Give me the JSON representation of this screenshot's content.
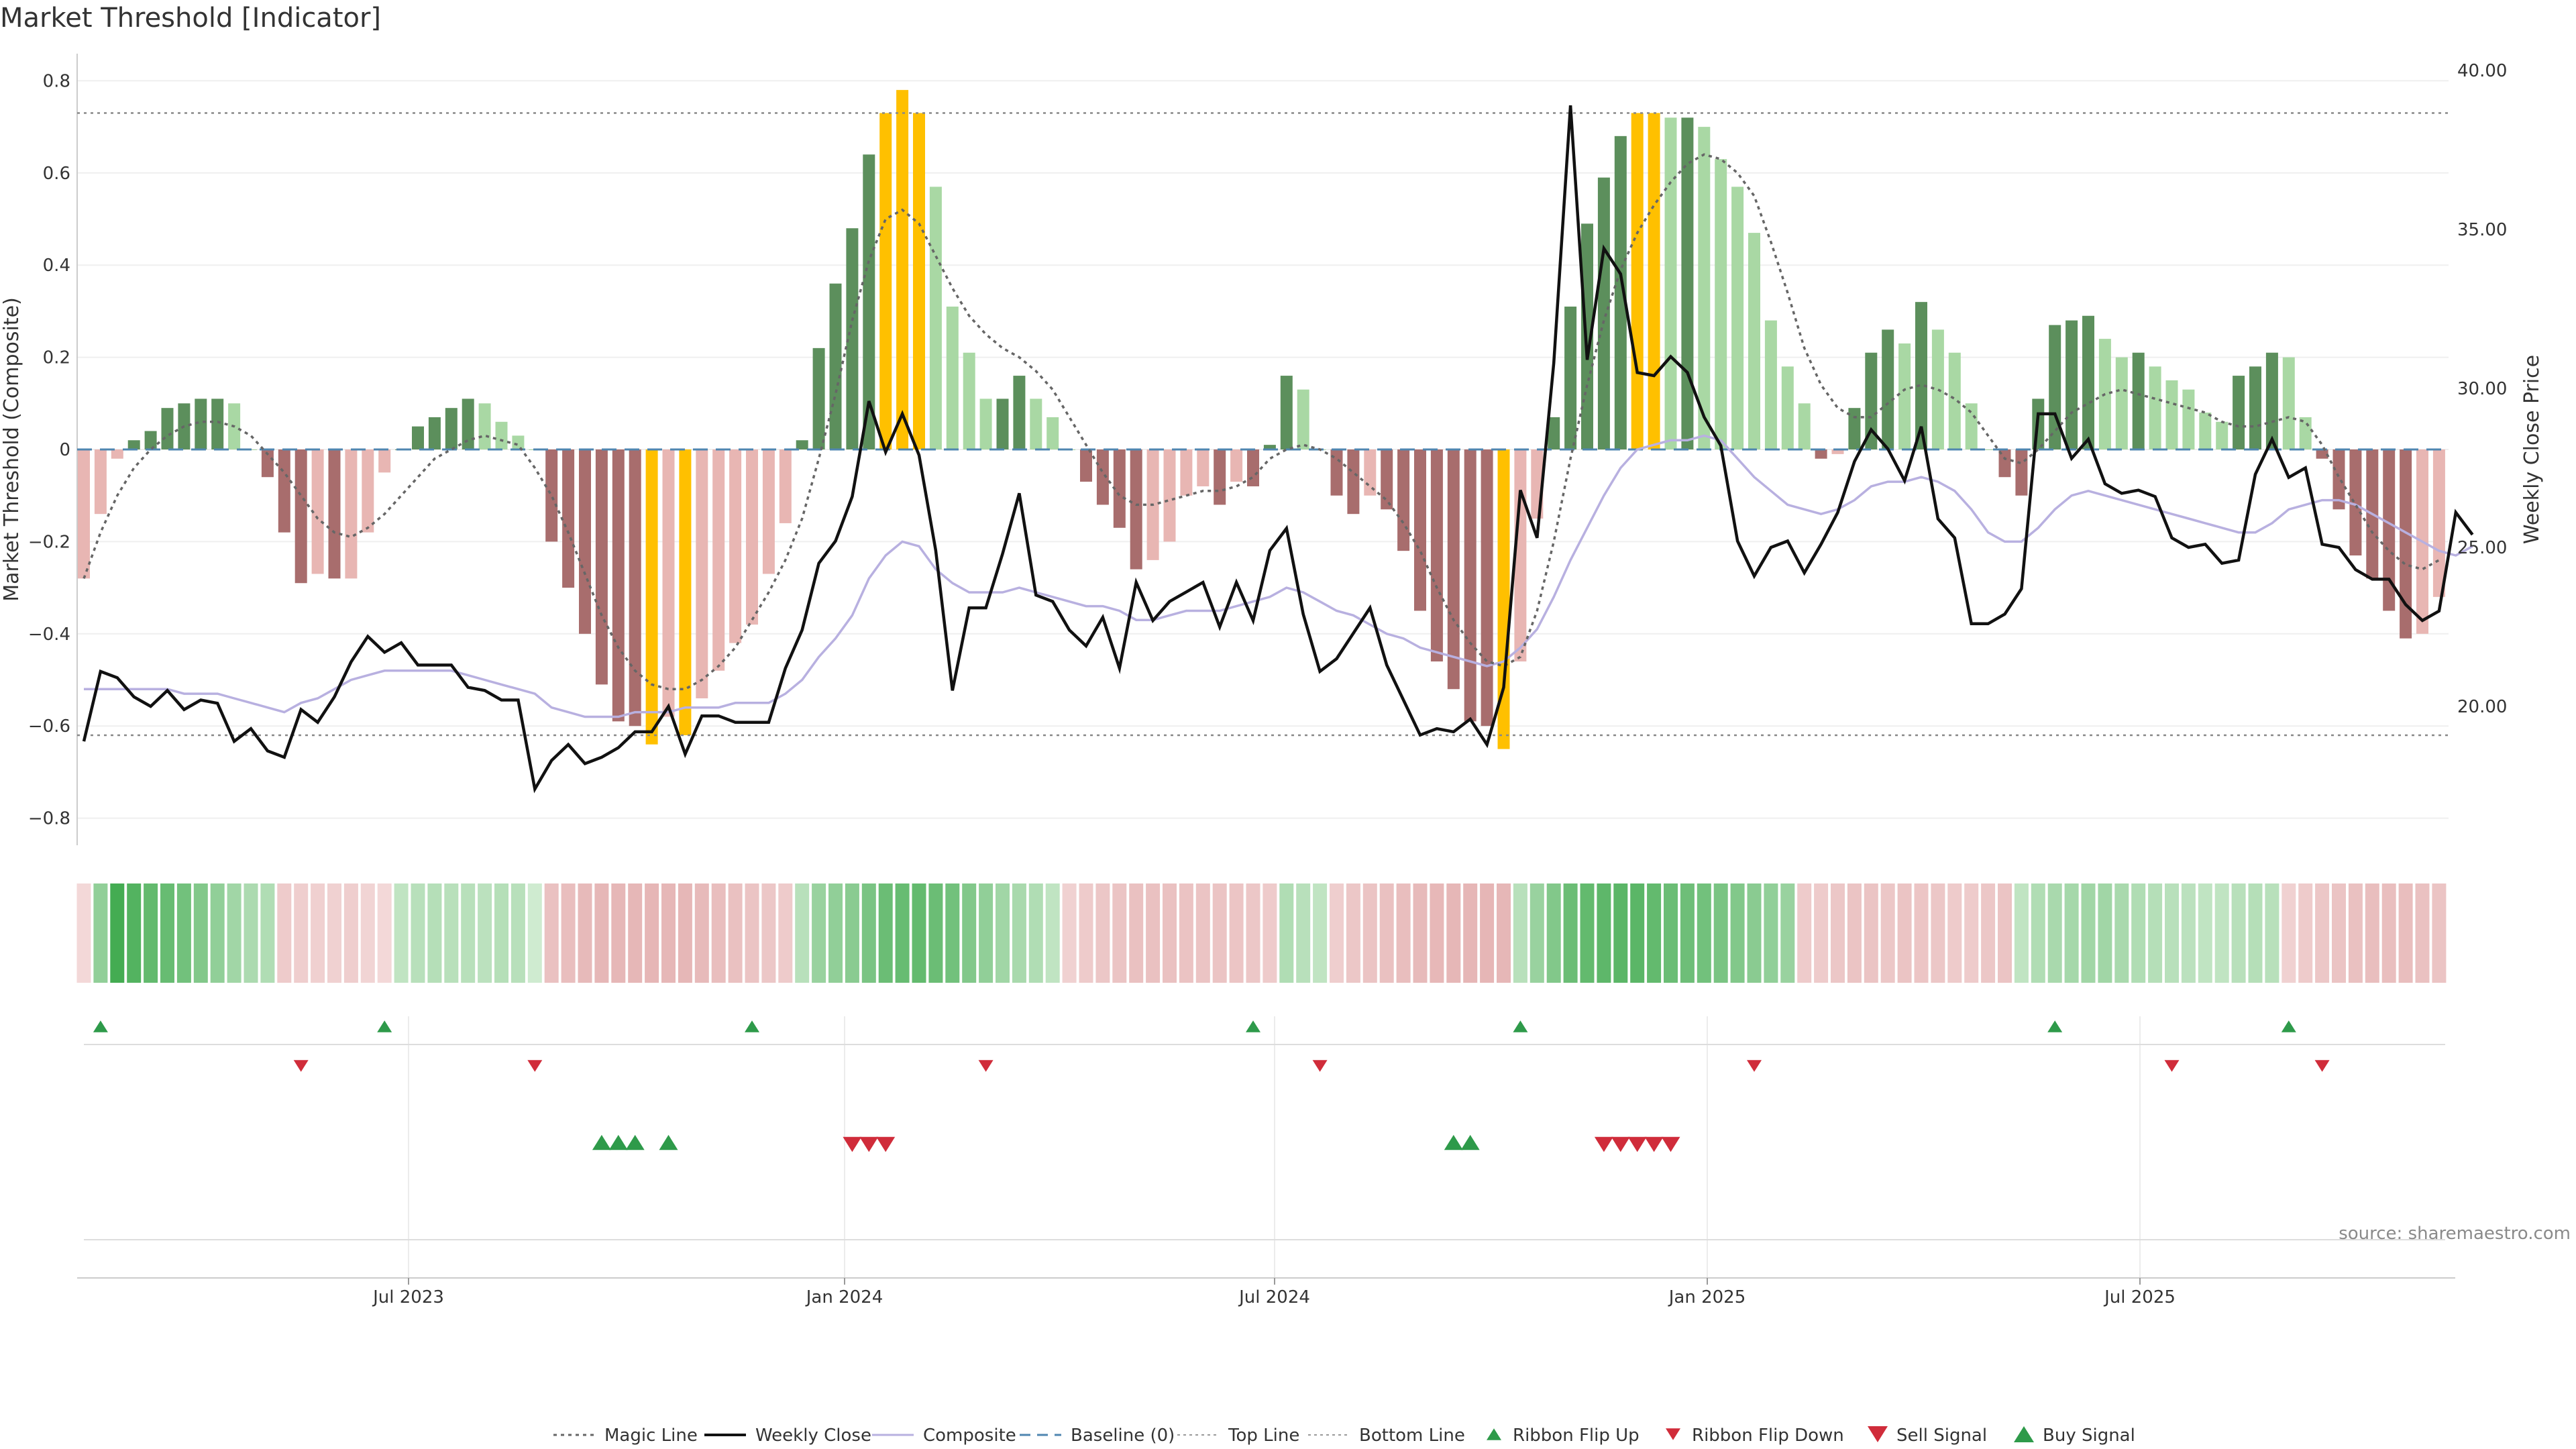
{
  "title": "Market Threshold [Indicator]",
  "source": "source: sharemaestro.com",
  "chart_data": {
    "type": "bar",
    "title": "Market Threshold [Indicator]",
    "ylabel": "Market Threshold (Composite)",
    "y2label": "Weekly Close Price",
    "ylim": [
      -0.85,
      0.82
    ],
    "y2lim": [
      16.5,
      40.5
    ],
    "yticks": [
      "0.8",
      "0.6",
      "0.4",
      "0.2",
      "0",
      "−0.2",
      "−0.4",
      "−0.6",
      "−0.8"
    ],
    "y2ticks": [
      "40.00",
      "35.00",
      "30.00",
      "25.00",
      "20.00"
    ],
    "xticks": [
      "Jul 2023",
      "Jan 2024",
      "Jul 2024",
      "Jan 2025",
      "Jul 2025"
    ],
    "top_line": 0.73,
    "bottom_line": -0.62,
    "baseline": 0,
    "grid": true,
    "legend_position": "bottom-center",
    "colors": {
      "dark_green": "#5c8f5c",
      "light_green": "#a9d8a4",
      "dark_red": "#a86d6d",
      "light_red": "#e8b6b3",
      "extreme": "#ffc000",
      "close": "#111111",
      "composite": "#b8b0e0",
      "magic": "#666666",
      "baseline": "#4f86b0",
      "up": "#2e9a4a",
      "down": "#d02c3a"
    },
    "series": [
      {
        "name": "Market Threshold (Composite)",
        "values": [
          -0.28,
          -0.14,
          -0.02,
          0.02,
          0.04,
          0.09,
          0.1,
          0.11,
          0.11,
          0.1,
          0,
          -0.06,
          -0.18,
          -0.29,
          -0.27,
          -0.28,
          -0.28,
          -0.18,
          -0.05,
          0,
          0.05,
          0.07,
          0.09,
          0.11,
          0.1,
          0.06,
          0.03,
          0,
          -0.2,
          -0.3,
          -0.4,
          -0.51,
          -0.59,
          -0.6,
          -0.64,
          -0.58,
          -0.62,
          -0.54,
          -0.48,
          -0.42,
          -0.38,
          -0.27,
          -0.16,
          0.02,
          0.22,
          0.36,
          0.48,
          0.64,
          0.73,
          0.78,
          0.73,
          0.57,
          0.31,
          0.21,
          0.11,
          0.11,
          0.16,
          0.11,
          0.07,
          0,
          -0.07,
          -0.12,
          -0.17,
          -0.26,
          -0.24,
          -0.2,
          -0.1,
          -0.08,
          -0.12,
          -0.07,
          -0.08,
          0.01,
          0.16,
          0.13,
          0,
          -0.1,
          -0.14,
          -0.1,
          -0.13,
          -0.22,
          -0.35,
          -0.46,
          -0.52,
          -0.59,
          -0.6,
          -0.65,
          -0.46,
          -0.15,
          0.07,
          0.31,
          0.49,
          0.59,
          0.68,
          0.73,
          0.73,
          0.72,
          0.72,
          0.7,
          0.63,
          0.57,
          0.47,
          0.28,
          0.18,
          0.1,
          -0.02,
          -0.01,
          0.09,
          0.21,
          0.26,
          0.23,
          0.32,
          0.26,
          0.21,
          0.1,
          0,
          -0.06,
          -0.1,
          0.11,
          0.27,
          0.28,
          0.29,
          0.24,
          0.2,
          0.21,
          0.18,
          0.15,
          0.13,
          0.08,
          0.06,
          0.16,
          0.18,
          0.21,
          0.2,
          0.07,
          -0.02,
          -0.13,
          -0.23,
          -0.28,
          -0.35,
          -0.41,
          -0.4,
          -0.32
        ]
      },
      {
        "name": "Weekly Close",
        "values": [
          18.9,
          21.1,
          20.9,
          20.3,
          20,
          20.5,
          19.9,
          20.2,
          20.1,
          18.9,
          19.3,
          18.6,
          18.4,
          19.9,
          19.5,
          20.3,
          21.4,
          22.2,
          21.7,
          22,
          21.3,
          21.3,
          21.3,
          20.6,
          20.5,
          20.2,
          20.2,
          17.4,
          18.3,
          18.8,
          18.2,
          18.4,
          18.7,
          19.2,
          19.2,
          20,
          18.5,
          19.7,
          19.7,
          19.5,
          19.5,
          19.5,
          21.2,
          22.4,
          24.5,
          25.2,
          26.6,
          29.6,
          28,
          29.2,
          27.9,
          24.9,
          20.5,
          23.1,
          23.1,
          24.8,
          26.7,
          23.5,
          23.3,
          22.4,
          21.9,
          22.8,
          21.2,
          23.9,
          22.7,
          23.3,
          23.6,
          23.9,
          22.5,
          23.9,
          22.7,
          24.9,
          25.6,
          22.9,
          21.1,
          21.5,
          22.3,
          23.1,
          21.3,
          20.2,
          19.1,
          19.3,
          19.2,
          19.6,
          18.8,
          20.6,
          26.8,
          25.3,
          30.8,
          38.9,
          30.9,
          34.4,
          33.6,
          30.5,
          30.4,
          31,
          30.5,
          29.1,
          28.2,
          25.2,
          24.1,
          25,
          25.2,
          24.2,
          25.1,
          26.1,
          27.7,
          28.7,
          28.1,
          27.1,
          28.8,
          25.9,
          25.3,
          22.6,
          22.6,
          22.9,
          23.7,
          29.2,
          29.2,
          27.8,
          28.4,
          27,
          26.7,
          26.8,
          26.6,
          25.3,
          25,
          25.1,
          24.5,
          24.6,
          27.3,
          28.4,
          27.2,
          27.5,
          25.1,
          25,
          24.3,
          24,
          24,
          23.2,
          22.7,
          23,
          26.1,
          25.4
        ]
      },
      {
        "name": "Composite",
        "values": [
          -0.52,
          -0.52,
          -0.52,
          -0.52,
          -0.52,
          -0.52,
          -0.53,
          -0.53,
          -0.53,
          -0.54,
          -0.55,
          -0.56,
          -0.57,
          -0.55,
          -0.54,
          -0.52,
          -0.5,
          -0.49,
          -0.48,
          -0.48,
          -0.48,
          -0.48,
          -0.48,
          -0.49,
          -0.5,
          -0.51,
          -0.52,
          -0.53,
          -0.56,
          -0.57,
          -0.58,
          -0.58,
          -0.58,
          -0.57,
          -0.57,
          -0.57,
          -0.56,
          -0.56,
          -0.56,
          -0.55,
          -0.55,
          -0.55,
          -0.53,
          -0.5,
          -0.45,
          -0.41,
          -0.36,
          -0.28,
          -0.23,
          -0.2,
          -0.21,
          -0.26,
          -0.29,
          -0.31,
          -0.31,
          -0.31,
          -0.3,
          -0.31,
          -0.32,
          -0.33,
          -0.34,
          -0.34,
          -0.35,
          -0.37,
          -0.37,
          -0.36,
          -0.35,
          -0.35,
          -0.35,
          -0.34,
          -0.33,
          -0.32,
          -0.3,
          -0.31,
          -0.33,
          -0.35,
          -0.36,
          -0.38,
          -0.4,
          -0.41,
          -0.43,
          -0.44,
          -0.45,
          -0.46,
          -0.47,
          -0.46,
          -0.43,
          -0.39,
          -0.32,
          -0.24,
          -0.17,
          -0.1,
          -0.04,
          0,
          0.01,
          0.02,
          0.02,
          0.03,
          0.02,
          -0.02,
          -0.06,
          -0.09,
          -0.12,
          -0.13,
          -0.14,
          -0.13,
          -0.11,
          -0.08,
          -0.07,
          -0.07,
          -0.06,
          -0.07,
          -0.09,
          -0.13,
          -0.18,
          -0.2,
          -0.2,
          -0.17,
          -0.13,
          -0.1,
          -0.09,
          -0.1,
          -0.11,
          -0.12,
          -0.13,
          -0.14,
          -0.15,
          -0.16,
          -0.17,
          -0.18,
          -0.18,
          -0.16,
          -0.13,
          -0.12,
          -0.11,
          -0.11,
          -0.12,
          -0.14,
          -0.16,
          -0.18,
          -0.2,
          -0.22,
          -0.23,
          -0.21
        ]
      },
      {
        "name": "Magic Line",
        "values": [
          -0.28,
          -0.18,
          -0.1,
          -0.04,
          0,
          0.03,
          0.05,
          0.06,
          0.06,
          0.05,
          0.03,
          -0.01,
          -0.05,
          -0.1,
          -0.15,
          -0.18,
          -0.19,
          -0.17,
          -0.14,
          -0.1,
          -0.06,
          -0.02,
          0,
          0.02,
          0.03,
          0.02,
          0.01,
          -0.04,
          -0.1,
          -0.18,
          -0.27,
          -0.36,
          -0.43,
          -0.48,
          -0.51,
          -0.52,
          -0.52,
          -0.5,
          -0.47,
          -0.43,
          -0.37,
          -0.31,
          -0.24,
          -0.15,
          -0.02,
          0.12,
          0.28,
          0.41,
          0.5,
          0.52,
          0.49,
          0.42,
          0.35,
          0.29,
          0.25,
          0.22,
          0.2,
          0.17,
          0.13,
          0.07,
          0.01,
          -0.05,
          -0.1,
          -0.12,
          -0.12,
          -0.11,
          -0.1,
          -0.09,
          -0.09,
          -0.08,
          -0.06,
          -0.02,
          0,
          0.01,
          0,
          -0.02,
          -0.05,
          -0.08,
          -0.11,
          -0.16,
          -0.22,
          -0.3,
          -0.37,
          -0.42,
          -0.46,
          -0.47,
          -0.45,
          -0.35,
          -0.2,
          -0.02,
          0.14,
          0.28,
          0.39,
          0.47,
          0.53,
          0.58,
          0.62,
          0.64,
          0.63,
          0.6,
          0.55,
          0.45,
          0.34,
          0.22,
          0.14,
          0.09,
          0.07,
          0.07,
          0.1,
          0.13,
          0.14,
          0.13,
          0.11,
          0.08,
          0.03,
          -0.02,
          -0.03,
          0,
          0.04,
          0.08,
          0.1,
          0.12,
          0.13,
          0.12,
          0.11,
          0.1,
          0.09,
          0.08,
          0.06,
          0.05,
          0.05,
          0.06,
          0.07,
          0.06,
          0.01,
          -0.06,
          -0.12,
          -0.18,
          -0.22,
          -0.25,
          -0.26,
          -0.24
        ]
      }
    ],
    "legend": [
      "Magic Line",
      "Weekly Close",
      "Composite",
      "Baseline (0)",
      "Top Line",
      "Bottom Line",
      "Ribbon Flip Up",
      "Ribbon Flip Down",
      "Sell Signal",
      "Buy Signal"
    ],
    "ribbon_levels": [
      -0.1,
      0.45,
      0.95,
      0.85,
      0.75,
      0.72,
      0.65,
      0.55,
      0.45,
      0.35,
      0.28,
      0.25,
      -0.3,
      -0.25,
      -0.22,
      -0.2,
      -0.25,
      -0.15,
      -0.1,
      0.15,
      0.2,
      0.22,
      0.2,
      0.2,
      0.18,
      0.22,
      0.2,
      0.05,
      -0.45,
      -0.5,
      -0.55,
      -0.6,
      -0.6,
      -0.6,
      -0.62,
      -0.6,
      -0.6,
      -0.55,
      -0.5,
      -0.45,
      -0.4,
      -0.35,
      -0.3,
      0.2,
      0.4,
      0.45,
      0.5,
      0.6,
      0.7,
      0.72,
      0.75,
      0.7,
      0.65,
      0.55,
      0.45,
      0.35,
      0.3,
      0.25,
      0.15,
      -0.2,
      -0.3,
      -0.35,
      -0.4,
      -0.45,
      -0.45,
      -0.45,
      -0.42,
      -0.4,
      -0.4,
      -0.38,
      -0.35,
      -0.3,
      0.25,
      0.2,
      0.15,
      -0.25,
      -0.35,
      -0.4,
      -0.45,
      -0.5,
      -0.55,
      -0.58,
      -0.6,
      -0.62,
      -0.62,
      -0.6,
      0.2,
      0.4,
      0.55,
      0.7,
      0.75,
      0.78,
      0.8,
      0.8,
      0.75,
      0.7,
      0.68,
      0.65,
      0.6,
      0.55,
      0.5,
      0.45,
      0.4,
      -0.3,
      -0.3,
      -0.35,
      -0.4,
      -0.4,
      -0.35,
      -0.4,
      -0.38,
      -0.35,
      -0.3,
      -0.3,
      -0.35,
      -0.4,
      0.15,
      0.25,
      0.3,
      0.32,
      0.35,
      0.35,
      0.3,
      0.25,
      0.22,
      0.2,
      0.18,
      0.15,
      0.15,
      0.2,
      0.22,
      0.2,
      -0.2,
      -0.3,
      -0.35,
      -0.4,
      -0.45,
      -0.5,
      -0.5,
      -0.5,
      -0.45,
      -0.4
    ],
    "ribbon_flip_up": [
      1,
      18,
      40,
      70,
      86,
      118,
      132
    ],
    "ribbon_flip_down": [
      13,
      27,
      54,
      74,
      100,
      125,
      134
    ],
    "buy_signals": [
      31,
      32,
      33,
      35,
      82,
      83
    ],
    "sell_signals": [
      46,
      47,
      48,
      91,
      92,
      93,
      94,
      95
    ]
  }
}
